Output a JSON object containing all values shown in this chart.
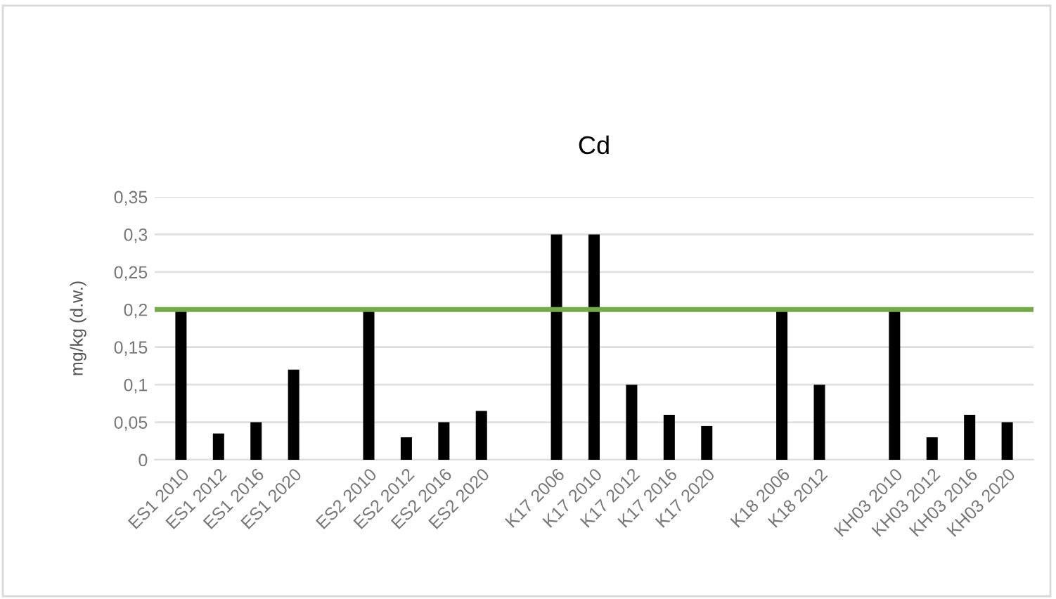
{
  "chart_data": {
    "type": "bar",
    "title": "Cd",
    "ylabel": "mg/kg (d.w.)",
    "categories": [
      "ES1 2010",
      "ES1 2012",
      "ES1 2016",
      "ES1 2020",
      null,
      "ES2 2010",
      "ES2 2012",
      "ES2 2016",
      "ES2 2020",
      null,
      "K17 2006",
      "K17 2010",
      "K17 2012",
      "K17 2016",
      "K17 2020",
      null,
      "K18 2006",
      "K18 2012",
      null,
      "KH03 2010",
      "KH03 2012",
      "KH03 2016",
      "KH03 2020"
    ],
    "values": [
      0.2,
      0.035,
      0.05,
      0.12,
      null,
      0.2,
      0.03,
      0.05,
      0.065,
      null,
      0.3,
      0.3,
      0.1,
      0.06,
      0.045,
      null,
      0.2,
      0.1,
      null,
      0.2,
      0.03,
      0.06,
      0.05
    ],
    "color": "#000000",
    "ylim": [
      0,
      0.35
    ],
    "yticks": [
      0,
      {
        "value": 0.05,
        "label": "0,05"
      },
      {
        "value": 0.1,
        "label": "0,1"
      },
      {
        "value": 0.15,
        "label": "0,15"
      },
      {
        "value": 0.2,
        "label": "0,2"
      },
      {
        "value": 0.25,
        "label": "0,25"
      },
      {
        "value": 0.3,
        "label": "0,3"
      },
      {
        "value": 0.35,
        "label": "0,35"
      }
    ],
    "grid": "y",
    "ref_lines": [
      {
        "axis": "y",
        "value": 0.2,
        "color": "#70ad47"
      }
    ]
  }
}
